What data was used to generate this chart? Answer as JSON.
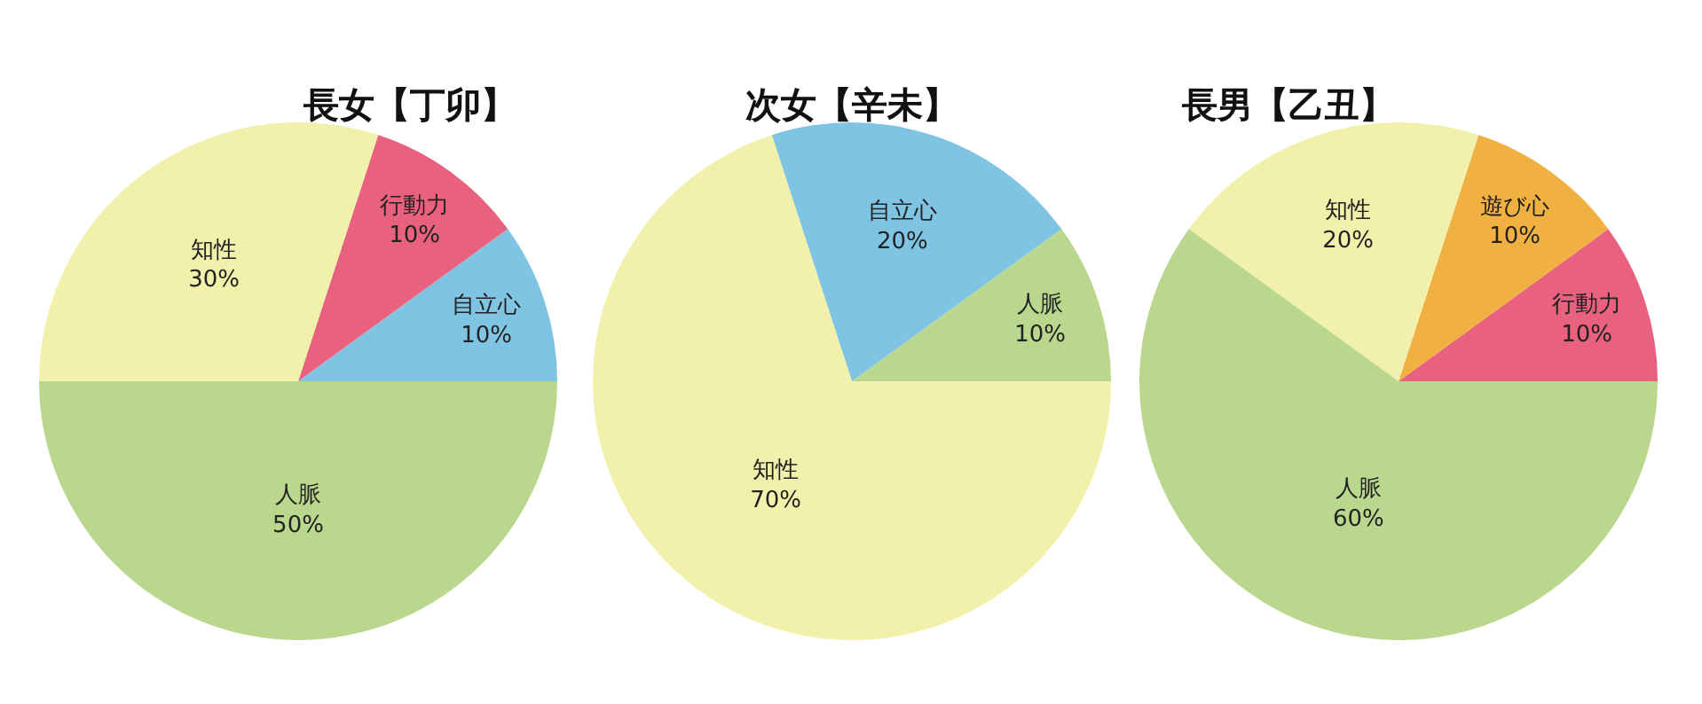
{
  "chart_data": [
    {
      "type": "pie",
      "title": "長女【丁卯】",
      "categories": [
        "自立心",
        "行動力",
        "知性",
        "人脈"
      ],
      "values": [
        10,
        10,
        30,
        50
      ],
      "value_labels": [
        "10%",
        "10%",
        "30%",
        "50%"
      ],
      "colors": [
        "#80c4e4",
        "#e8627f",
        "#f1f1ab",
        "#b9d78d"
      ]
    },
    {
      "type": "pie",
      "title": "次女【辛未】",
      "categories": [
        "人脈",
        "自立心",
        "知性"
      ],
      "values": [
        10,
        20,
        70
      ],
      "value_labels": [
        "10%",
        "20%",
        "70%"
      ],
      "colors": [
        "#b9d78d",
        "#80c4e4",
        "#f1f1ab"
      ]
    },
    {
      "type": "pie",
      "title": "長男【乙丑】",
      "categories": [
        "行動力",
        "遊び心",
        "知性",
        "人脈"
      ],
      "values": [
        10,
        10,
        20,
        60
      ],
      "value_labels": [
        "10%",
        "10%",
        "20%",
        "60%"
      ],
      "colors": [
        "#e8627f",
        "#f0b042",
        "#f1f1ab",
        "#b9d78d"
      ]
    }
  ]
}
